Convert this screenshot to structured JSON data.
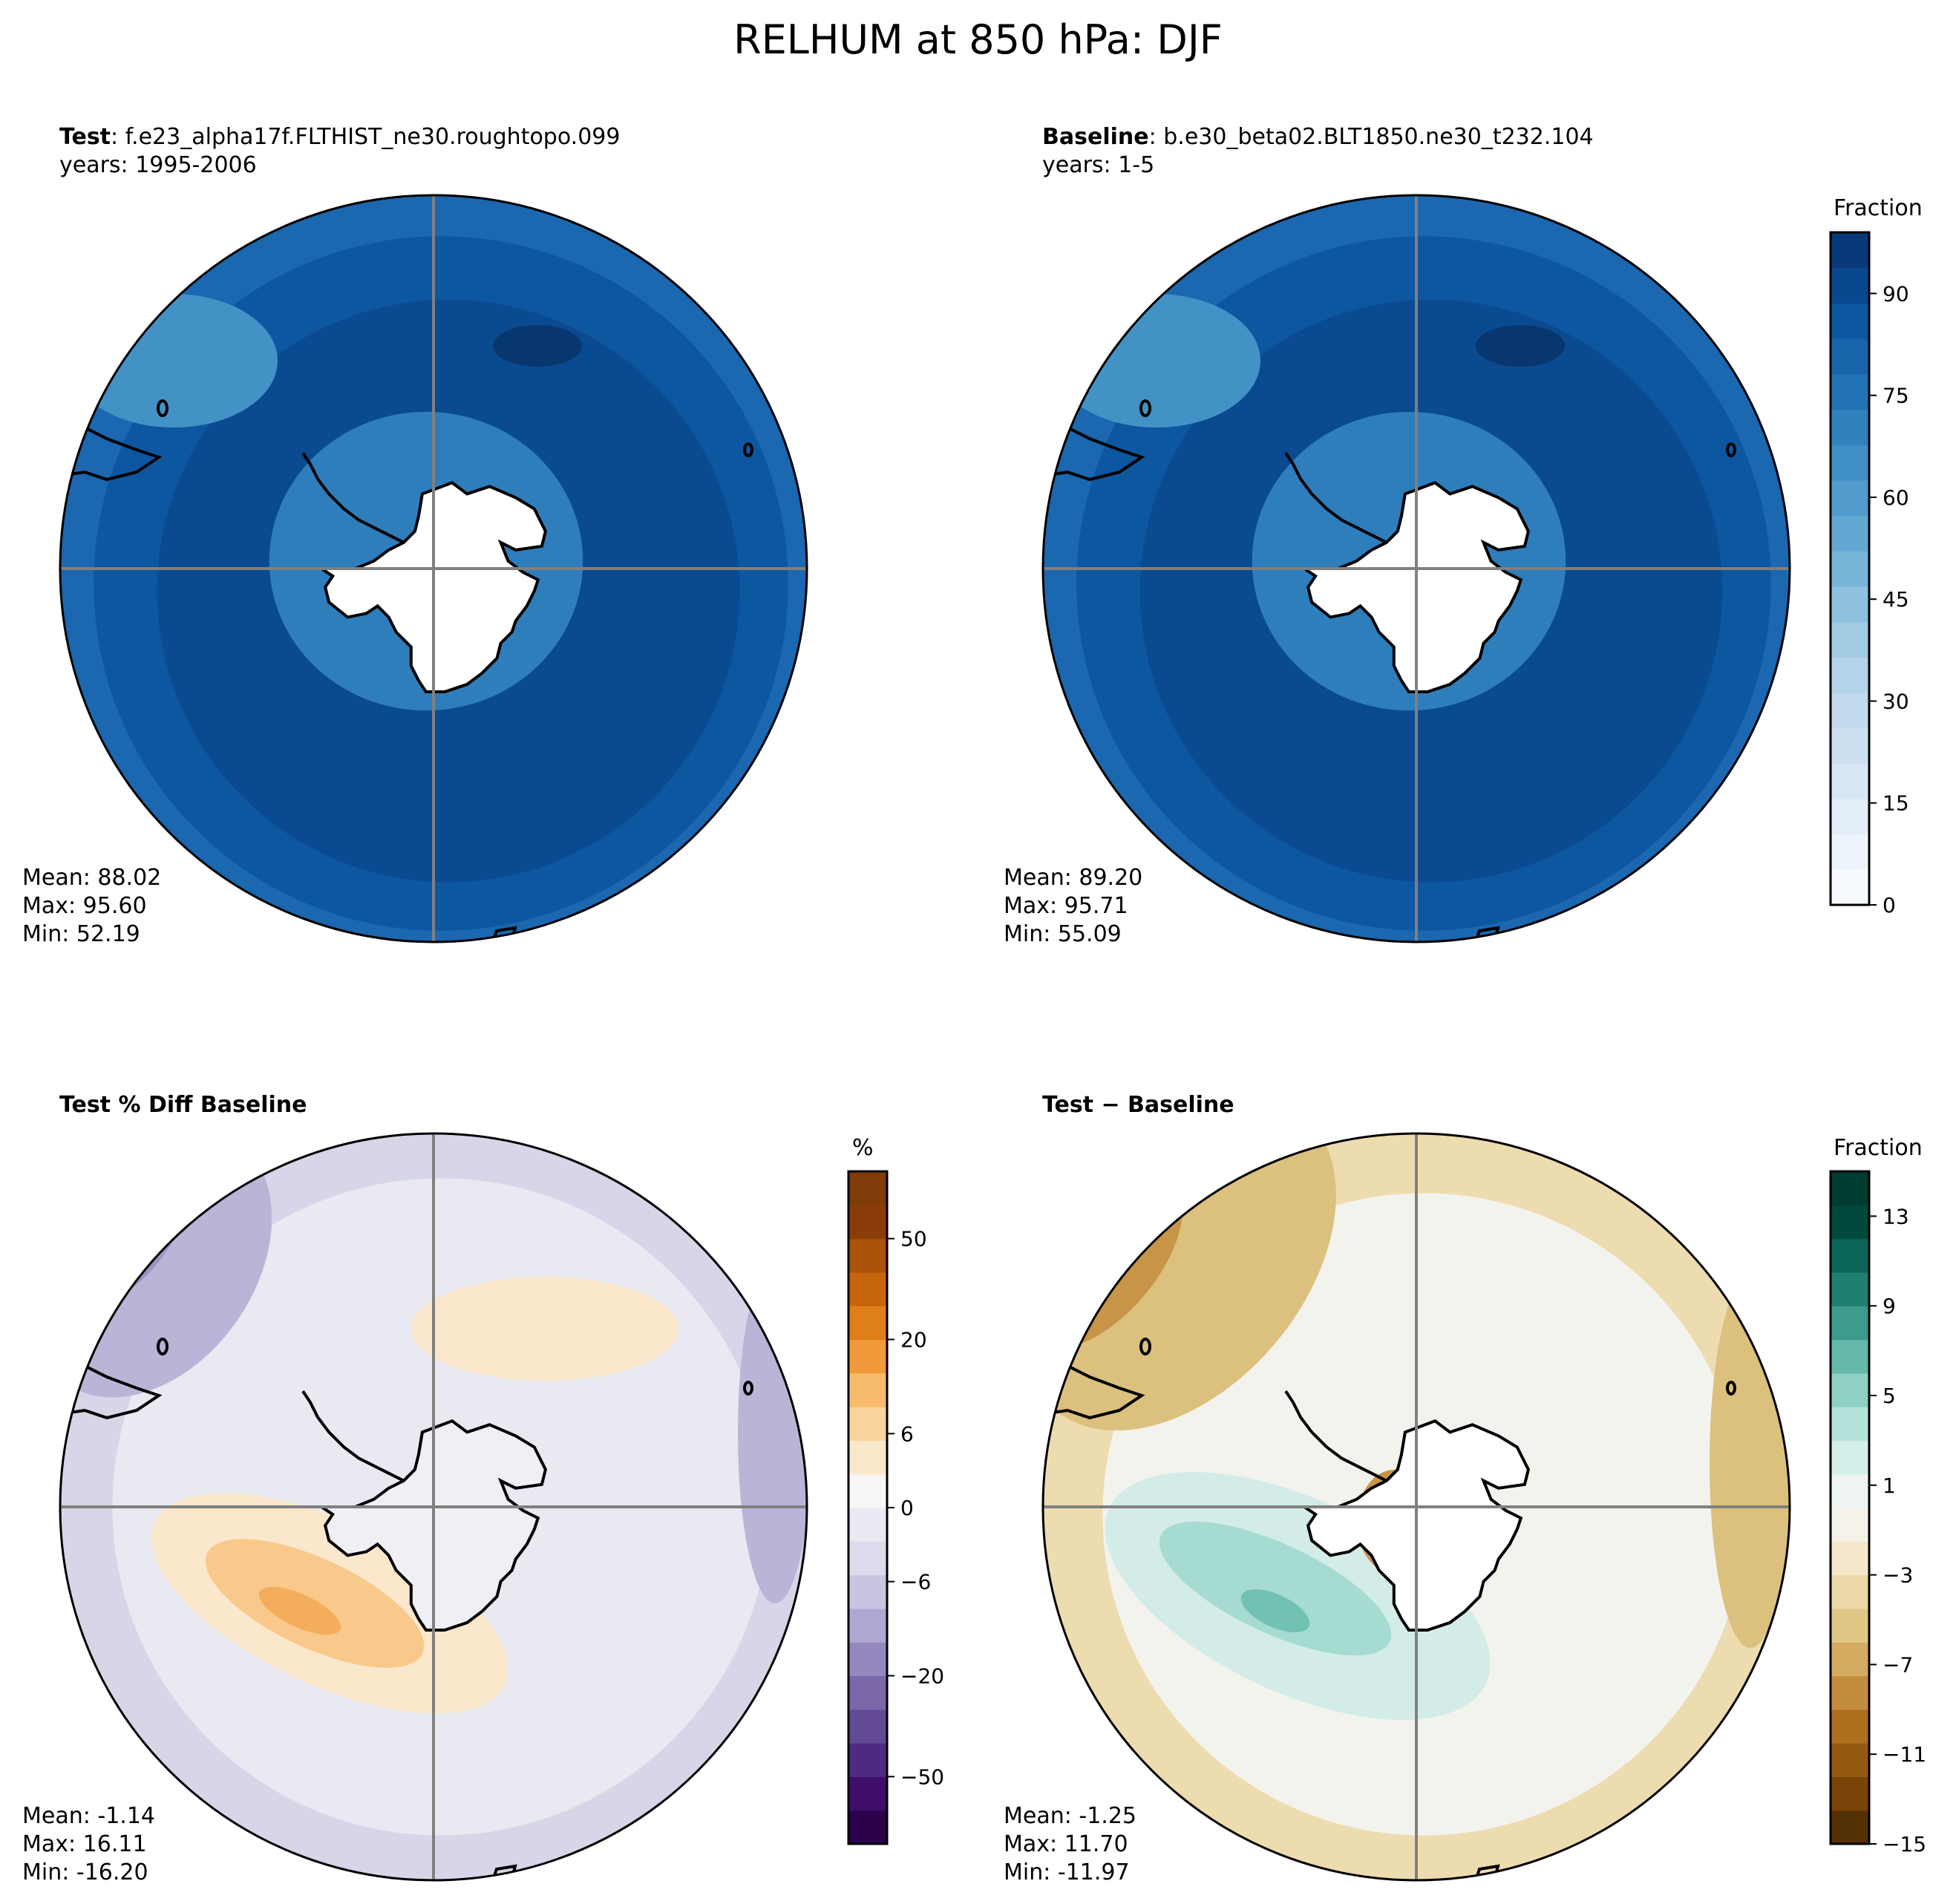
{
  "figure": {
    "title": "RELHUM at 850 hPa: DJF"
  },
  "panels": [
    {
      "id": "test",
      "label_bold": "Test",
      "label_case": ": f.e23_alpha17f.FLTHIST_ne30.roughtopo.099",
      "years": "years: 1995-2006",
      "stats": {
        "mean": "Mean: 88.02",
        "max": "Max: 95.60",
        "min": "Min: 52.19"
      },
      "colormap": "Blues",
      "fill_colors": [
        "#0a4a90",
        "#0d57a1",
        "#1b67b0",
        "#2e7ebc",
        "#4292c6",
        "#ffffff"
      ]
    },
    {
      "id": "baseline",
      "label_bold": "Baseline",
      "label_case": ": b.e30_beta02.BLT1850.ne30_t232.104",
      "years": "years: 1-5",
      "stats": {
        "mean": "Mean: 89.20",
        "max": "Max: 95.71",
        "min": "Min: 55.09"
      },
      "colormap": "Blues",
      "fill_colors": [
        "#0a4a90",
        "#0d57a1",
        "#1b67b0",
        "#2e7ebc",
        "#4292c6",
        "#ffffff"
      ]
    },
    {
      "id": "pct-diff",
      "label_bold": "Test % Diff Baseline",
      "label_case": "",
      "years": "",
      "stats": {
        "mean": "Mean: -1.14",
        "max": "Max: 16.11",
        "min": "Min: -16.20"
      },
      "colormap": "PuOr_r",
      "fill_colors": [
        "#e8e9f1",
        "#d6d6e8",
        "#b9b5d7",
        "#9c94c4",
        "#fbe7cb",
        "#f8c98a",
        "#f3ad5c",
        "#eef0f4"
      ]
    },
    {
      "id": "diff",
      "label_bold": "Test − Baseline",
      "label_case": "",
      "years": "",
      "stats": {
        "mean": "Mean: -1.25",
        "max": "Max: 11.70",
        "min": "Min: -11.97"
      },
      "colormap": "BrBG",
      "fill_colors": [
        "#f3f3ee",
        "#eddcb0",
        "#dcc07e",
        "#c89548",
        "#a8691f",
        "#d3ece7",
        "#a5dbd0",
        "#71c2b2",
        "#ffffff"
      ]
    }
  ],
  "colorbars": [
    {
      "id": "cb-fraction-top",
      "title": "Fraction",
      "ticks": [
        "0",
        "15",
        "30",
        "45",
        "60",
        "75",
        "90"
      ],
      "colors": [
        "#f7fbff",
        "#edf4fc",
        "#e3eef9",
        "#d8e7f5",
        "#cde0f1",
        "#c2d9ee",
        "#b3d3e8",
        "#a1cbe2",
        "#8dc1dd",
        "#77b5d9",
        "#63a8d3",
        "#519ccc",
        "#3f8fc5",
        "#3181bd",
        "#2372b6",
        "#1764ab",
        "#0d56a0",
        "#08488e",
        "#083a7a"
      ]
    },
    {
      "id": "cb-percent",
      "title": "%",
      "ticks": [
        "50",
        "20",
        "6",
        "0",
        "−6",
        "−20",
        "−50"
      ],
      "colors": [
        "#2d004b",
        "#3e0e6a",
        "#4f2a84",
        "#634a97",
        "#7a68ab",
        "#9488bf",
        "#afa7d1",
        "#c8c5e1",
        "#dcdbec",
        "#eaeaf2",
        "#f7f6f5",
        "#fae8cb",
        "#f9d49e",
        "#f8bb6c",
        "#f29a3b",
        "#e07e18",
        "#c8650c",
        "#a9520a",
        "#8a3d08",
        "#7f3b08"
      ]
    },
    {
      "id": "cb-fraction-diff",
      "title": "Fraction",
      "ticks": [
        "−15",
        "−11",
        "−7",
        "−3",
        "1",
        "5",
        "9",
        "13"
      ],
      "colors": [
        "#543005",
        "#7a4408",
        "#955910",
        "#af6e1e",
        "#c48d3e",
        "#d5aa61",
        "#e1c786",
        "#ecd9a8",
        "#f4e8cc",
        "#f5f2ea",
        "#eef4f2",
        "#d4eeea",
        "#b4e2da",
        "#8ed0c3",
        "#64b8a9",
        "#3e9a8c",
        "#1f7f70",
        "#0b6458",
        "#01493d",
        "#003c30"
      ]
    }
  ]
}
